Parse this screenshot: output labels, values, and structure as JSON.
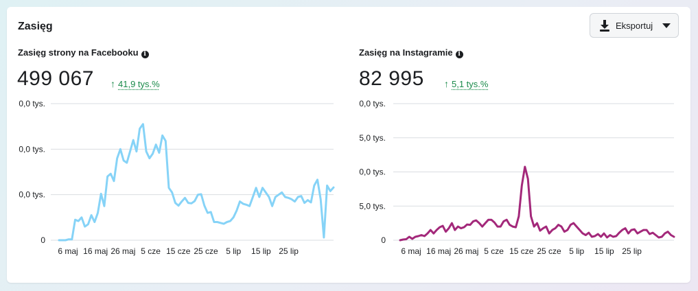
{
  "card": {
    "title": "Zasięg"
  },
  "export": {
    "label": "Eksportuj",
    "icon": "download-icon",
    "caret_icon": "caret-down-icon"
  },
  "facebook": {
    "title": "Zasięg strony na Facebooku",
    "total": "499 067",
    "delta": "41,9 tys.%",
    "delta_color": "#1a8a4a",
    "line_color": "#86d3f7"
  },
  "instagram": {
    "title": "Zasięg na Instagramie",
    "total": "82 995",
    "delta": "5,1 tys.%",
    "delta_color": "#1a8a4a",
    "line_color": "#a3287a"
  },
  "chart_data": [
    {
      "type": "line",
      "title": "Zasięg strony na Facebooku",
      "x_tick_labels": [
        "6 maj",
        "16 maj",
        "26 maj",
        "5 cze",
        "15 cze",
        "25 cze",
        "5 lip",
        "15 lip",
        "25 lip"
      ],
      "y_tick_labels": [
        "0",
        "0,0 tys.",
        "0,0 tys.",
        "0,0 tys."
      ],
      "ylim": [
        0,
        30
      ],
      "grid": true,
      "series": [
        {
          "color": "#86d3f7",
          "values": [
            0,
            0,
            0,
            0.2,
            0.2,
            4.5,
            4.2,
            5,
            3,
            3.5,
            5.5,
            4,
            6,
            10.2,
            7.5,
            14,
            14.6,
            13,
            18,
            20,
            17.5,
            17,
            19.5,
            22,
            19.5,
            24.5,
            25.5,
            19.5,
            18,
            19,
            21,
            19.2,
            23,
            21.8,
            11.5,
            10.5,
            8.2,
            7.6,
            8.5,
            9.3,
            8.2,
            8.1,
            8.6,
            10,
            10.1,
            7.6,
            6,
            6.2,
            4,
            4,
            3.8,
            3.6,
            4,
            4.2,
            5,
            6.5,
            8.5,
            8,
            7.8,
            7.5,
            9.5,
            11.5,
            9.5,
            11.5,
            10.5,
            9.5,
            7.5,
            9.5,
            10,
            10.5,
            9.5,
            9.3,
            9,
            8.5,
            9.5,
            9.7,
            8.2,
            8.8,
            8.3,
            12,
            13.3,
            9,
            0.6,
            12,
            10.8,
            11.6
          ]
        }
      ]
    },
    {
      "type": "line",
      "title": "Zasięg na Instagramie",
      "x_tick_labels": [
        "6 maj",
        "16 maj",
        "26 maj",
        "5 cze",
        "15 cze",
        "25 cze",
        "5 lip",
        "15 lip",
        "25 lip"
      ],
      "y_tick_labels": [
        "0",
        "5,0 tys.",
        "0,0 tys.",
        "5,0 tys.",
        "0,0 tys."
      ],
      "ylim": [
        0,
        4
      ],
      "grid": true,
      "series": [
        {
          "color": "#a3287a",
          "values": [
            0,
            0.02,
            0.03,
            0.1,
            0.04,
            0.1,
            0.12,
            0.15,
            0.12,
            0.2,
            0.3,
            0.2,
            0.3,
            0.38,
            0.42,
            0.25,
            0.35,
            0.5,
            0.3,
            0.4,
            0.35,
            0.38,
            0.46,
            0.45,
            0.55,
            0.58,
            0.5,
            0.4,
            0.5,
            0.6,
            0.6,
            0.52,
            0.4,
            0.4,
            0.55,
            0.6,
            0.45,
            0.4,
            0.38,
            0.7,
            1.6,
            2.15,
            1.8,
            0.7,
            0.4,
            0.5,
            0.28,
            0.35,
            0.4,
            0.2,
            0.3,
            0.35,
            0.45,
            0.4,
            0.25,
            0.3,
            0.45,
            0.5,
            0.4,
            0.3,
            0.2,
            0.15,
            0.22,
            0.1,
            0.12,
            0.18,
            0.1,
            0.2,
            0.08,
            0.15,
            0.1,
            0.12,
            0.22,
            0.3,
            0.35,
            0.2,
            0.3,
            0.32,
            0.2,
            0.25,
            0.3,
            0.3,
            0.18,
            0.22,
            0.15,
            0.08,
            0.1,
            0.2,
            0.25,
            0.15,
            0.1
          ]
        }
      ]
    }
  ]
}
